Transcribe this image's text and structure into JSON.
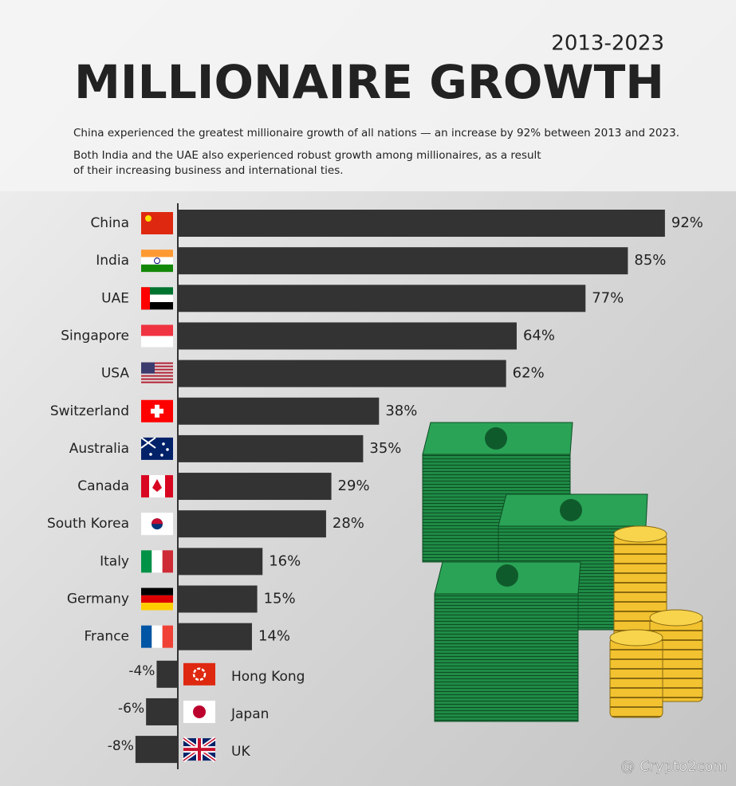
{
  "chart_data": {
    "type": "bar",
    "orientation": "horizontal",
    "subtitle": "2013-2023",
    "title": "MILLIONAIRE GROWTH",
    "notes": [
      "China experienced the greatest millionaire growth of all nations — an increase by 92% between 2013 and 2023.",
      "Both India and the UAE also experienced robust growth among millionaires, as a result",
      "of their increasing business and international ties."
    ],
    "categories": [
      "China",
      "India",
      "UAE",
      "Singapore",
      "USA",
      "Switzerland",
      "Australia",
      "Canada",
      "South Korea",
      "Italy",
      "Germany",
      "France",
      "Hong Kong",
      "Japan",
      "UK"
    ],
    "values": [
      92,
      85,
      77,
      64,
      62,
      38,
      35,
      29,
      28,
      16,
      15,
      14,
      -4,
      -6,
      -8
    ],
    "value_labels": [
      "92%",
      "85%",
      "77%",
      "64%",
      "62%",
      "38%",
      "35%",
      "29%",
      "28%",
      "16%",
      "15%",
      "14%",
      "-4%",
      "-6%",
      "-8%"
    ],
    "color": "#333333",
    "watermark": "@ Crypto2com"
  }
}
